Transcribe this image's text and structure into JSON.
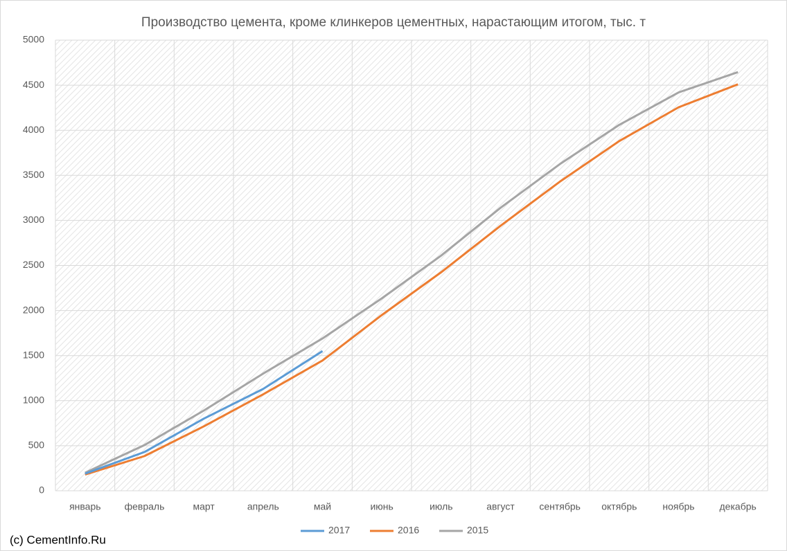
{
  "chart_data": {
    "type": "line",
    "title": "Производство цемента, кроме клинкеров цементных, нарастающим итогом, тыс. т",
    "source": "(c) CementInfo.Ru",
    "categories": [
      "январь",
      "февраль",
      "март",
      "апрель",
      "май",
      "июнь",
      "июль",
      "август",
      "сентябрь",
      "октябрь",
      "ноябрь",
      "декабрь"
    ],
    "series": [
      {
        "name": "2017",
        "color": "#5b9bd5",
        "values": [
          190,
          430,
          800,
          1130,
          1550,
          null,
          null,
          null,
          null,
          null,
          null,
          null
        ]
      },
      {
        "name": "2016",
        "color": "#ed7d31",
        "values": [
          180,
          385,
          715,
          1070,
          1445,
          1950,
          2425,
          2940,
          3430,
          3880,
          4255,
          4510
        ]
      },
      {
        "name": "2015",
        "color": "#a5a5a5",
        "values": [
          200,
          507,
          890,
          1300,
          1690,
          2135,
          2610,
          3140,
          3625,
          4060,
          4420,
          4645
        ]
      }
    ],
    "ylim": [
      0,
      5000
    ],
    "yticks": [
      0,
      500,
      1000,
      1500,
      2000,
      2500,
      3000,
      3500,
      4000,
      4500,
      5000
    ],
    "grid": true,
    "legend": "bottom"
  }
}
